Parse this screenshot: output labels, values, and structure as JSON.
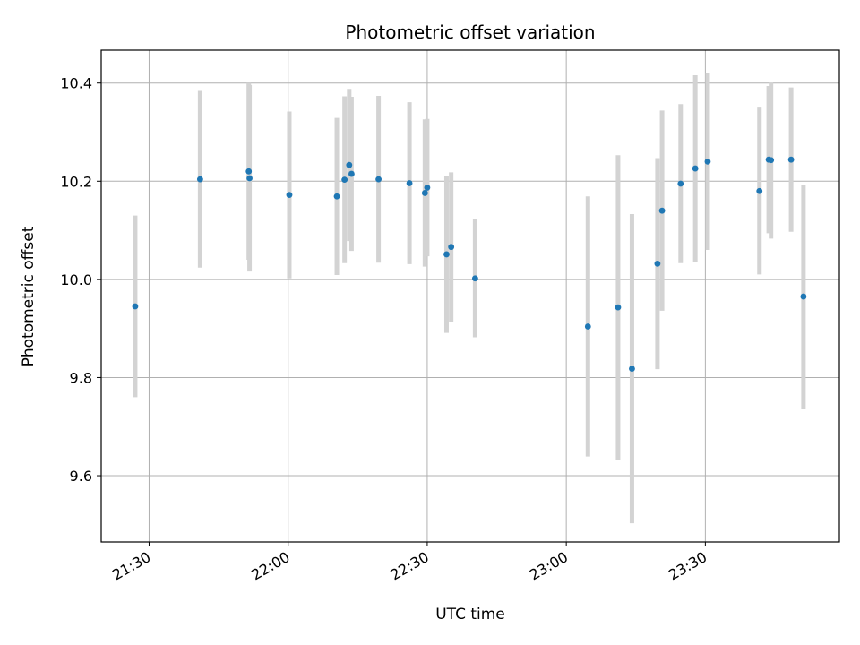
{
  "chart_data": {
    "type": "scatter",
    "title": "Photometric offset variation",
    "xlabel": "UTC time",
    "ylabel": "Photometric offset",
    "x_axis_type": "time",
    "xlim": [
      "21:19:40",
      "23:58:55"
    ],
    "ylim": [
      9.465,
      10.467
    ],
    "grid": true,
    "colors": {
      "marker": "#1f77b4",
      "errorbar": "#d3d3d3",
      "grid": "#b0b0b0"
    },
    "x_ticks": [
      "21:30",
      "22:00",
      "22:30",
      "23:00",
      "23:30"
    ],
    "y_ticks": [
      9.6,
      9.8,
      10.0,
      10.2,
      10.4
    ],
    "y_tick_labels": [
      "9.6",
      "9.8",
      "10.0",
      "10.2",
      "10.4"
    ],
    "points": [
      {
        "x": "21:27:00",
        "y": 9.945,
        "err": 0.185
      },
      {
        "x": "21:41:00",
        "y": 10.204,
        "err": 0.18
      },
      {
        "x": "21:51:30",
        "y": 10.22,
        "err": 0.18
      },
      {
        "x": "21:51:40",
        "y": 10.206,
        "err": 0.19
      },
      {
        "x": "22:00:15",
        "y": 10.172,
        "err": 0.17
      },
      {
        "x": "22:10:30",
        "y": 10.169,
        "err": 0.16
      },
      {
        "x": "22:12:10",
        "y": 10.203,
        "err": 0.17
      },
      {
        "x": "22:13:10",
        "y": 10.233,
        "err": 0.155
      },
      {
        "x": "22:13:40",
        "y": 10.215,
        "err": 0.157
      },
      {
        "x": "22:19:30",
        "y": 10.204,
        "err": 0.17
      },
      {
        "x": "22:26:10",
        "y": 10.196,
        "err": 0.165
      },
      {
        "x": "22:29:30",
        "y": 10.176,
        "err": 0.15
      },
      {
        "x": "22:30:00",
        "y": 10.187,
        "err": 0.14
      },
      {
        "x": "22:34:10",
        "y": 10.051,
        "err": 0.16
      },
      {
        "x": "22:35:10",
        "y": 10.066,
        "err": 0.152
      },
      {
        "x": "22:40:20",
        "y": 10.002,
        "err": 0.12
      },
      {
        "x": "23:04:40",
        "y": 9.904,
        "err": 0.265
      },
      {
        "x": "23:11:10",
        "y": 9.943,
        "err": 0.31
      },
      {
        "x": "23:14:10",
        "y": 9.818,
        "err": 0.315
      },
      {
        "x": "23:19:40",
        "y": 10.032,
        "err": 0.215
      },
      {
        "x": "23:20:40",
        "y": 10.14,
        "err": 0.204
      },
      {
        "x": "23:24:40",
        "y": 10.195,
        "err": 0.162
      },
      {
        "x": "23:27:50",
        "y": 10.226,
        "err": 0.19
      },
      {
        "x": "23:30:30",
        "y": 10.24,
        "err": 0.18
      },
      {
        "x": "23:41:40",
        "y": 10.18,
        "err": 0.17
      },
      {
        "x": "23:43:40",
        "y": 10.244,
        "err": 0.15
      },
      {
        "x": "23:44:10",
        "y": 10.243,
        "err": 0.16
      },
      {
        "x": "23:48:30",
        "y": 10.244,
        "err": 0.147
      },
      {
        "x": "23:51:10",
        "y": 9.965,
        "err": 0.228
      }
    ]
  }
}
